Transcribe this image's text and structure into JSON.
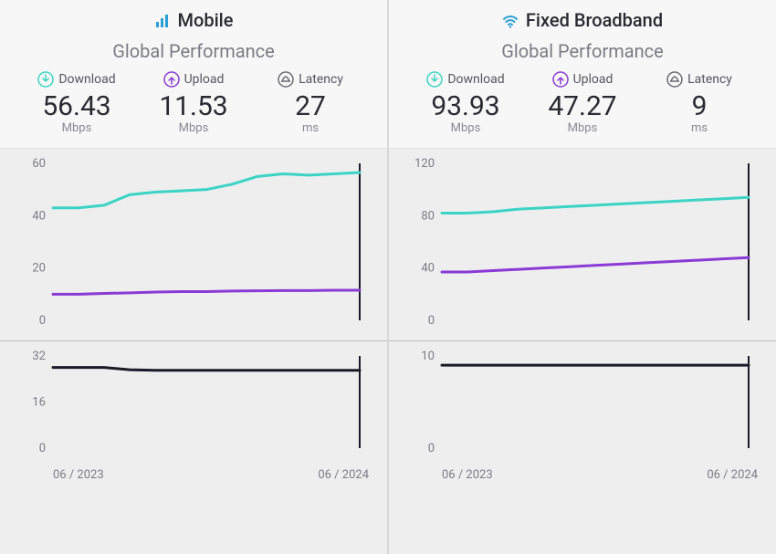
{
  "colors": {
    "download": "#3bd4c4",
    "upload": "#8a3ad6",
    "latency": "#6b6b74",
    "latency_line": "#1a1a28",
    "axis_text": "#7b7b85",
    "value_text": "#2a2a33",
    "header_bg": "#f7f7f7",
    "panel_bg": "#eeeeee"
  },
  "panels": [
    {
      "key": "mobile",
      "icon": "bars",
      "title": "Mobile",
      "subtitle": "Global Performance",
      "metrics": {
        "download": {
          "label": "Download",
          "value": "56.43",
          "unit": "Mbps"
        },
        "upload": {
          "label": "Upload",
          "value": "11.53",
          "unit": "Mbps"
        },
        "latency": {
          "label": "Latency",
          "value": "27",
          "unit": "ms"
        }
      },
      "main_chart": {
        "type": "line",
        "ylim": [
          0,
          60
        ],
        "yticks": [
          0,
          20,
          40,
          60
        ],
        "series": [
          {
            "name": "download",
            "color": "#3bd4c4",
            "stroke_width": 3,
            "values": [
              43,
              43,
              44,
              48,
              49,
              49.5,
              50,
              52,
              55,
              56,
              55.5,
              56,
              56.5
            ]
          },
          {
            "name": "upload",
            "color": "#8a3ad6",
            "stroke_width": 3,
            "values": [
              10,
              10,
              10.3,
              10.5,
              10.8,
              11,
              11,
              11.2,
              11.3,
              11.4,
              11.4,
              11.5,
              11.5
            ]
          }
        ],
        "x_start": "06 / 2023",
        "x_end": "06 / 2024"
      },
      "latency_chart": {
        "type": "line",
        "ylim": [
          0,
          32
        ],
        "yticks": [
          0,
          16,
          32
        ],
        "series": [
          {
            "name": "latency",
            "color": "#1a1a28",
            "stroke_width": 3,
            "values": [
              28,
              28,
              28,
              27.2,
              27,
              27,
              27,
              27,
              27,
              27,
              27,
              27,
              27
            ]
          }
        ],
        "x_start": "06 / 2023",
        "x_end": "06 / 2024"
      }
    },
    {
      "key": "fixed",
      "icon": "wifi",
      "title": "Fixed Broadband",
      "subtitle": "Global Performance",
      "metrics": {
        "download": {
          "label": "Download",
          "value": "93.93",
          "unit": "Mbps"
        },
        "upload": {
          "label": "Upload",
          "value": "47.27",
          "unit": "Mbps"
        },
        "latency": {
          "label": "Latency",
          "value": "9",
          "unit": "ms"
        }
      },
      "main_chart": {
        "type": "line",
        "ylim": [
          0,
          120
        ],
        "yticks": [
          0,
          40,
          80,
          120
        ],
        "series": [
          {
            "name": "download",
            "color": "#3bd4c4",
            "stroke_width": 3,
            "values": [
              82,
              82,
              83,
              85,
              86,
              87,
              88,
              89,
              90,
              91,
              92,
              93,
              94
            ]
          },
          {
            "name": "upload",
            "color": "#8a3ad6",
            "stroke_width": 3,
            "values": [
              37,
              37,
              38,
              39,
              40,
              41,
              42,
              43,
              44,
              45,
              46,
              47,
              48
            ]
          }
        ],
        "x_start": "06 / 2023",
        "x_end": "06 / 2024"
      },
      "latency_chart": {
        "type": "line",
        "ylim": [
          0,
          10
        ],
        "yticks": [
          0,
          10
        ],
        "series": [
          {
            "name": "latency",
            "color": "#1a1a28",
            "stroke_width": 3,
            "values": [
              9,
              9,
              9,
              9,
              9,
              9,
              9,
              9,
              9,
              9,
              9,
              9,
              9
            ]
          }
        ],
        "x_start": "06 / 2023",
        "x_end": "06 / 2024"
      }
    }
  ]
}
